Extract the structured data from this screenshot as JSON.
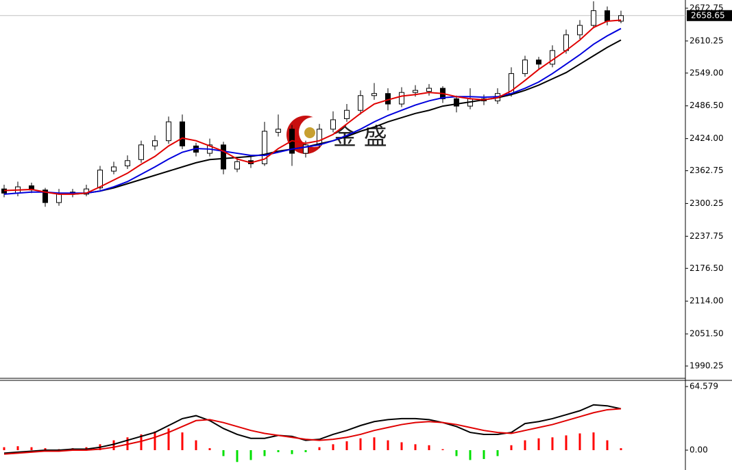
{
  "chart_data": [
    {
      "type": "candlestick",
      "watermark": "金 盛",
      "open": [
        2328,
        2320,
        2334,
        2326,
        2302,
        2322,
        2318,
        2330,
        2362,
        2372,
        2384,
        2410,
        2420,
        2456,
        2410,
        2396,
        2412,
        2366,
        2382,
        2376,
        2436,
        2442,
        2396,
        2412,
        2442,
        2462,
        2478,
        2506,
        2510,
        2490,
        2512,
        2514,
        2520,
        2500,
        2486,
        2500,
        2496,
        2510,
        2548,
        2574,
        2566,
        2592,
        2622,
        2640,
        2668,
        2648
      ],
      "high": [
        2336,
        2342,
        2340,
        2330,
        2328,
        2328,
        2336,
        2372,
        2380,
        2392,
        2420,
        2430,
        2466,
        2470,
        2416,
        2424,
        2418,
        2388,
        2390,
        2456,
        2470,
        2450,
        2420,
        2452,
        2476,
        2490,
        2516,
        2530,
        2520,
        2522,
        2526,
        2528,
        2524,
        2506,
        2520,
        2508,
        2520,
        2560,
        2582,
        2580,
        2602,
        2632,
        2650,
        2686,
        2676,
        2668
      ],
      "low": [
        2312,
        2314,
        2320,
        2294,
        2296,
        2312,
        2314,
        2326,
        2356,
        2366,
        2378,
        2402,
        2414,
        2404,
        2390,
        2390,
        2356,
        2360,
        2368,
        2372,
        2428,
        2372,
        2388,
        2406,
        2436,
        2456,
        2470,
        2498,
        2478,
        2484,
        2504,
        2506,
        2492,
        2474,
        2480,
        2488,
        2490,
        2504,
        2542,
        2556,
        2560,
        2586,
        2614,
        2634,
        2640,
        2644
      ],
      "close": [
        2320,
        2332,
        2326,
        2302,
        2320,
        2318,
        2328,
        2364,
        2370,
        2382,
        2412,
        2420,
        2456,
        2410,
        2398,
        2412,
        2366,
        2380,
        2376,
        2438,
        2442,
        2396,
        2412,
        2442,
        2460,
        2478,
        2506,
        2510,
        2490,
        2512,
        2516,
        2520,
        2500,
        2486,
        2500,
        2496,
        2510,
        2548,
        2574,
        2566,
        2592,
        2622,
        2640,
        2668,
        2648,
        2658.65
      ],
      "up_color": "#ffffff",
      "down_color": "#000000",
      "series": [
        {
          "color": "#000000",
          "values": [
            null,
            null,
            null,
            null,
            null,
            2318,
            2320,
            2324,
            2330,
            2338,
            2346,
            2354,
            2362,
            2370,
            2378,
            2384,
            2386,
            2388,
            2390,
            2394,
            2400,
            2404,
            2408,
            2414,
            2420,
            2428,
            2438,
            2446,
            2456,
            2464,
            2472,
            2478,
            2486,
            2490,
            2494,
            2498,
            2502,
            2508,
            2516,
            2526,
            2538,
            2550,
            2566,
            2582,
            2598,
            2612
          ]
        },
        {
          "color": "#0000dd",
          "values": [
            2318,
            2320,
            2322,
            2322,
            2320,
            2320,
            2320,
            2324,
            2332,
            2342,
            2356,
            2370,
            2385,
            2398,
            2405,
            2404,
            2400,
            2396,
            2392,
            2392,
            2398,
            2404,
            2408,
            2412,
            2420,
            2430,
            2442,
            2456,
            2468,
            2478,
            2488,
            2496,
            2502,
            2504,
            2504,
            2503,
            2504,
            2510,
            2520,
            2532,
            2548,
            2566,
            2584,
            2604,
            2620,
            2634
          ]
        },
        {
          "color": "#e00000",
          "values": [
            2325,
            2326,
            2327,
            2322,
            2318,
            2318,
            2320,
            2332,
            2345,
            2358,
            2375,
            2390,
            2410,
            2425,
            2420,
            2410,
            2400,
            2385,
            2378,
            2385,
            2405,
            2420,
            2415,
            2420,
            2432,
            2452,
            2472,
            2490,
            2498,
            2505,
            2508,
            2512,
            2510,
            2504,
            2500,
            2498,
            2502,
            2515,
            2535,
            2556,
            2574,
            2592,
            2612,
            2636,
            2648,
            2650
          ]
        }
      ],
      "last_price": 2658.65,
      "ylim": [
        1966.75,
        2688.4
      ],
      "yticks": [
        2672.75,
        2610.25,
        {
          "value": 2549,
          "label": "2549.00"
        },
        {
          "value": 2486.5,
          "label": "2486.50"
        },
        {
          "value": 2424,
          "label": "2424.00"
        },
        2362.75,
        2300.25,
        2237.75,
        {
          "value": 2176.5,
          "label": "2176.50"
        },
        {
          "value": 2114,
          "label": "2114.00"
        },
        {
          "value": 2051.5,
          "label": "2051.50"
        },
        1990.25
      ]
    },
    {
      "type": "macd",
      "bars": {
        "up_color": "#ff0000",
        "down_color": "#00e000",
        "values": [
          3,
          4,
          3,
          2,
          1,
          2,
          3,
          6,
          10,
          13,
          16,
          19,
          22,
          18,
          10,
          2,
          -6,
          -12,
          -10,
          -6,
          -2,
          -4,
          -2,
          3,
          6,
          9,
          12,
          13,
          10,
          8,
          6,
          5,
          1,
          -6,
          -10,
          -9,
          -6,
          5,
          10,
          12,
          13,
          15,
          17,
          18,
          10,
          2
        ]
      },
      "series": [
        {
          "color": "#000000",
          "values": [
            -3,
            -2,
            -1,
            0,
            0,
            1,
            1,
            3,
            6,
            10,
            14,
            18,
            25,
            32,
            35,
            30,
            22,
            16,
            12,
            12,
            15,
            14,
            10,
            11,
            16,
            20,
            25,
            29,
            31,
            32,
            32,
            31,
            28,
            24,
            18,
            16,
            16,
            18,
            27,
            29,
            32,
            36,
            40,
            46,
            45,
            42
          ]
        },
        {
          "color": "#e00000",
          "values": [
            -4,
            -3,
            -2,
            -1,
            -1,
            0,
            0,
            1,
            3,
            6,
            9,
            13,
            18,
            24,
            30,
            31,
            28,
            24,
            20,
            17,
            15,
            13,
            11,
            10,
            11,
            13,
            16,
            20,
            23,
            26,
            28,
            29,
            28,
            26,
            23,
            20,
            18,
            17,
            20,
            23,
            26,
            30,
            34,
            38,
            41,
            42
          ]
        }
      ],
      "ylim": [
        -20.14,
        70.83
      ],
      "yticks": [
        64.579,
        {
          "value": 0,
          "label": "0.00"
        }
      ]
    }
  ]
}
